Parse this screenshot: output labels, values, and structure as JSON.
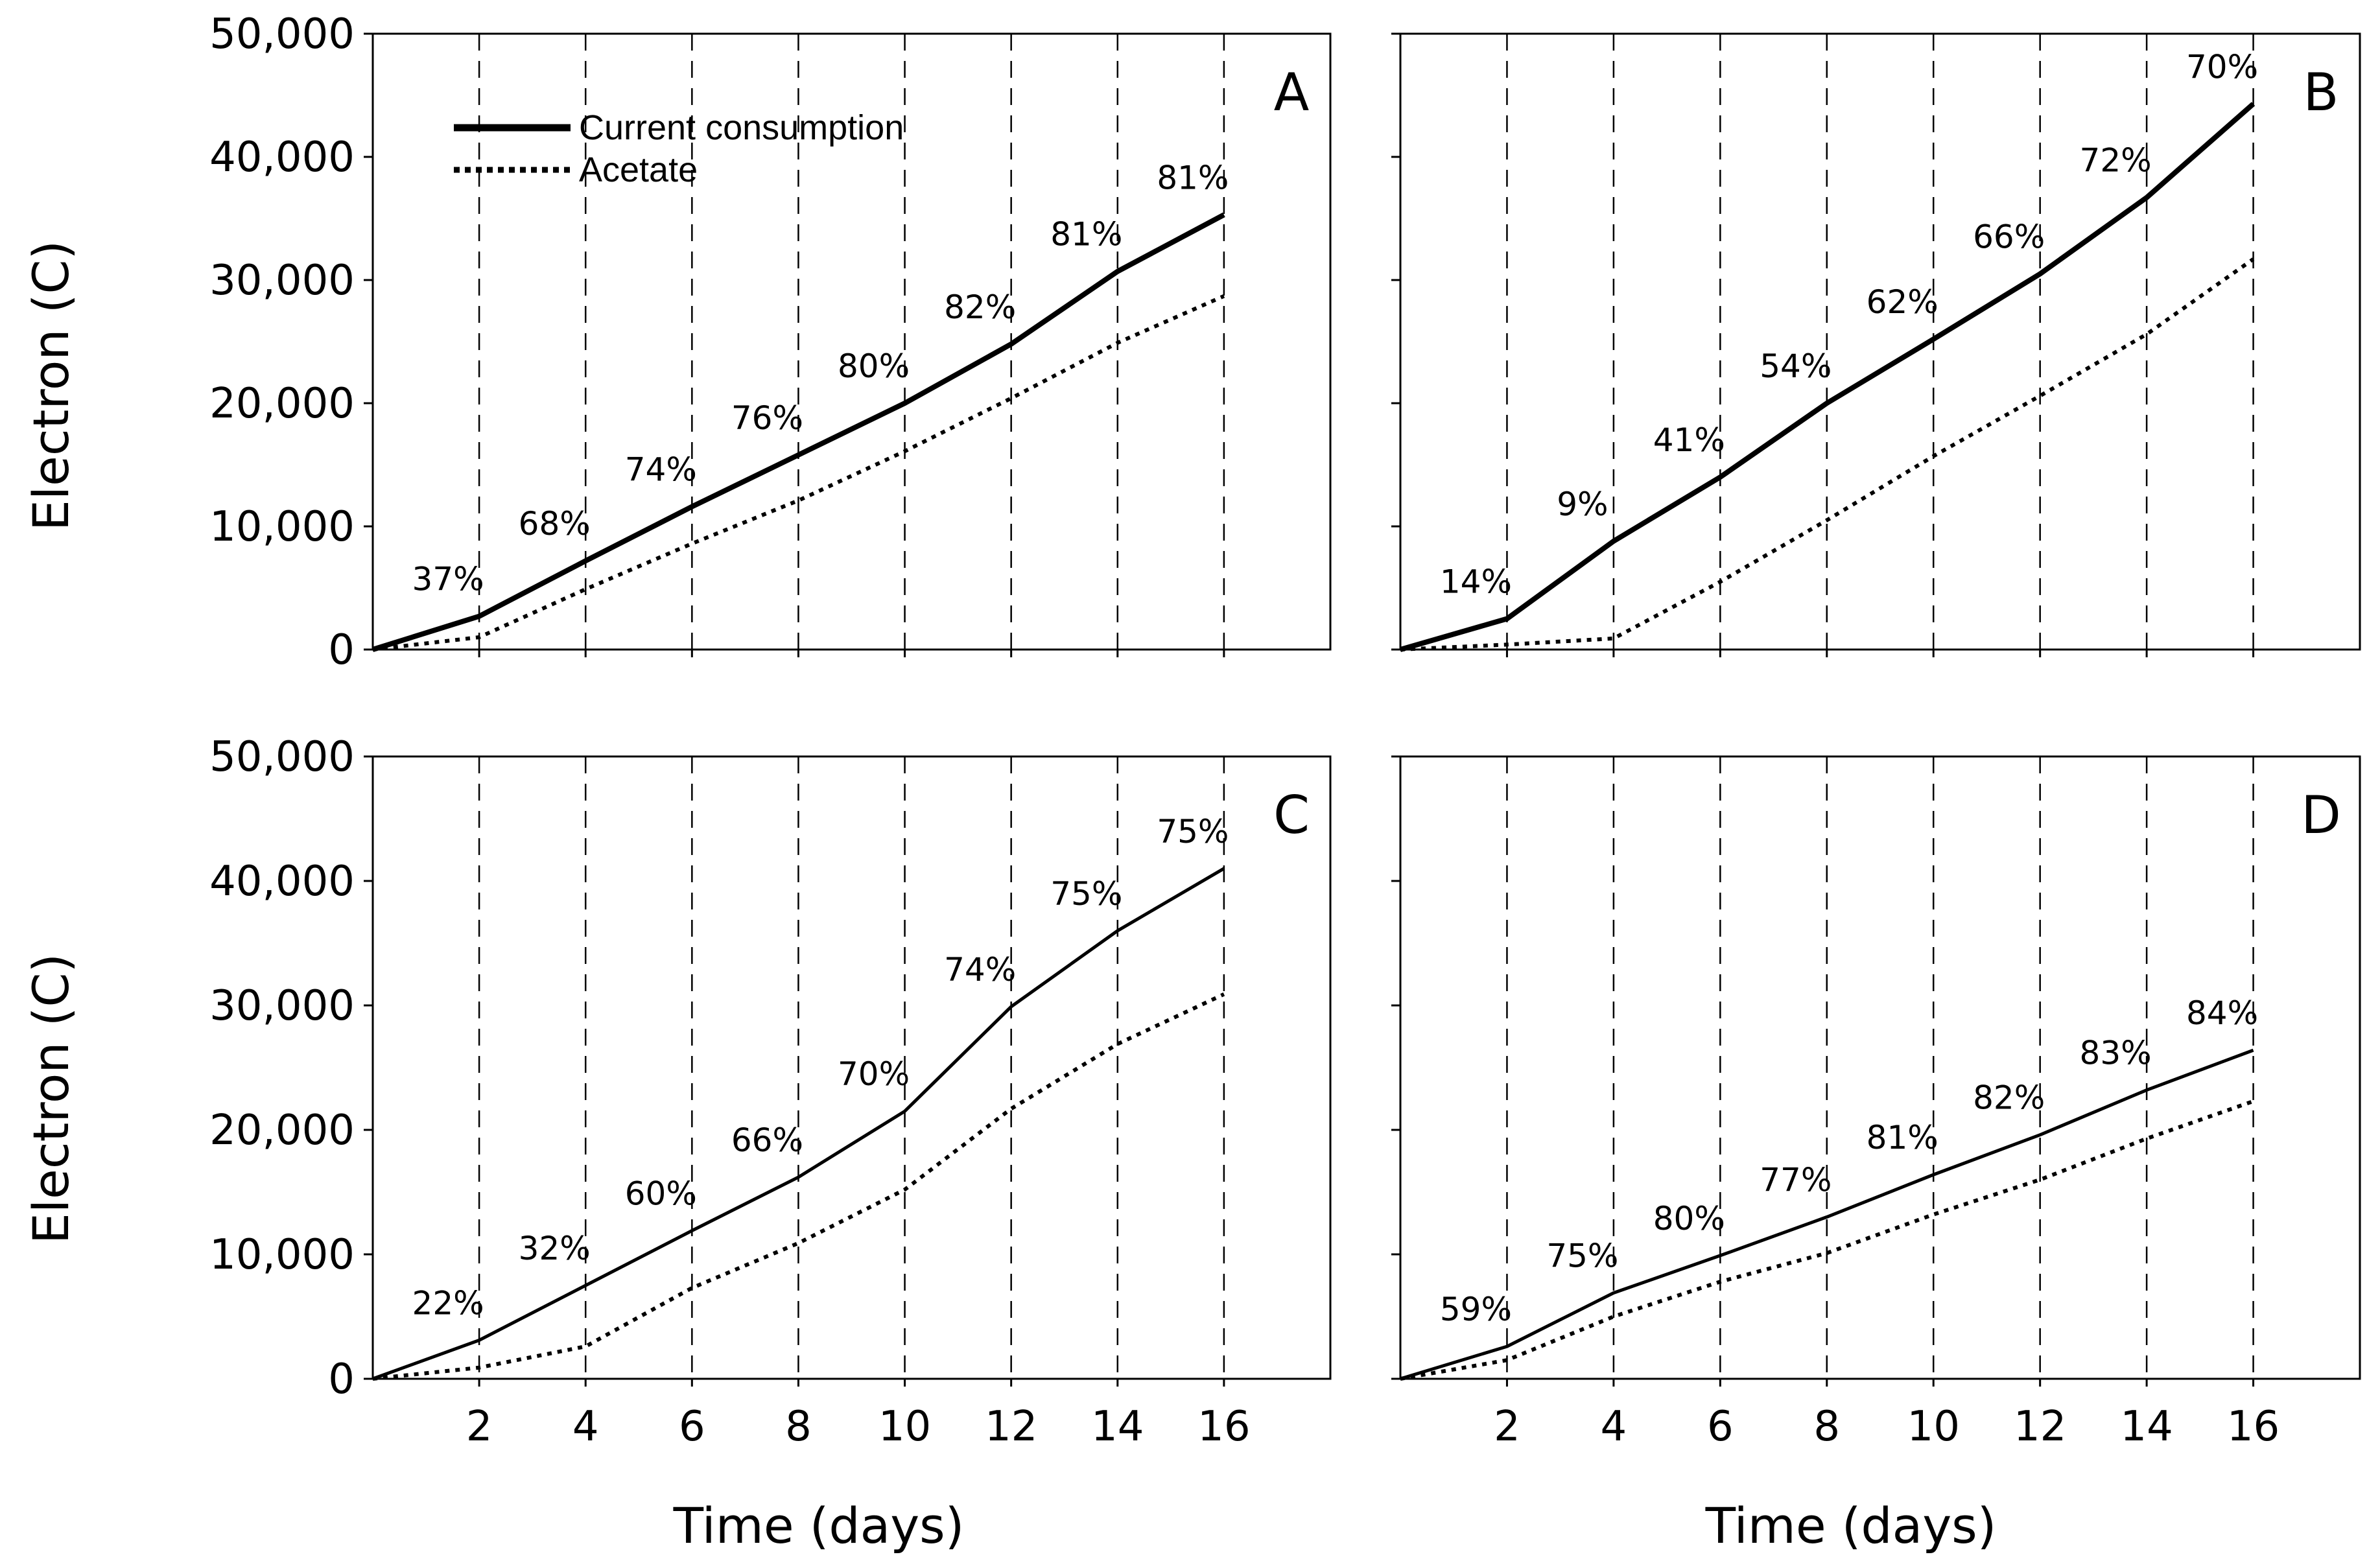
{
  "figure": {
    "y_axis_title": "Electron (C)",
    "x_axis_title": "Time (days)",
    "legend": [
      {
        "name": "Current consumption",
        "style": "solid"
      },
      {
        "name": "Acetate",
        "style": "dotted"
      }
    ]
  },
  "chart_data": [
    {
      "panel": "A",
      "type": "line",
      "xlabel": "Time (days)",
      "ylabel": "Electron (C)",
      "xlim": [
        0,
        18
      ],
      "ylim": [
        0,
        50000
      ],
      "x_ticks": [
        2,
        4,
        6,
        8,
        10,
        12,
        14,
        16
      ],
      "y_ticks": [
        0,
        10000,
        20000,
        30000,
        40000,
        50000
      ],
      "y_tick_labels": [
        "0",
        "10,000",
        "20,000",
        "30,000",
        "40,000",
        "50,000"
      ],
      "vertical_dashed_gridlines_at": [
        2,
        4,
        6,
        8,
        10,
        12,
        14,
        16
      ],
      "x": [
        0,
        2,
        4,
        6,
        8,
        10,
        12,
        14,
        16
      ],
      "series": [
        {
          "name": "Current consumption",
          "style": "solid",
          "values": [
            0,
            2700,
            7200,
            11600,
            15800,
            20000,
            24800,
            30700,
            35300
          ]
        },
        {
          "name": "Acetate",
          "style": "dotted",
          "values": [
            0,
            1000,
            4900,
            8600,
            12100,
            16100,
            20400,
            24900,
            28700
          ]
        }
      ],
      "annotations": [
        {
          "x": 2,
          "text": "37%"
        },
        {
          "x": 4,
          "text": "68%"
        },
        {
          "x": 6,
          "text": "74%"
        },
        {
          "x": 8,
          "text": "76%"
        },
        {
          "x": 10,
          "text": "80%"
        },
        {
          "x": 12,
          "text": "82%"
        },
        {
          "x": 14,
          "text": "81%"
        },
        {
          "x": 16,
          "text": "81%"
        }
      ],
      "legend_shown": true
    },
    {
      "panel": "B",
      "type": "line",
      "xlabel": "Time (days)",
      "ylabel": "Electron (C)",
      "xlim": [
        0,
        18
      ],
      "ylim": [
        0,
        50000
      ],
      "x_ticks": [
        2,
        4,
        6,
        8,
        10,
        12,
        14,
        16
      ],
      "y_ticks": [
        0,
        10000,
        20000,
        30000,
        40000,
        50000
      ],
      "y_tick_labels": [],
      "vertical_dashed_gridlines_at": [
        2,
        4,
        6,
        8,
        10,
        12,
        14,
        16
      ],
      "x": [
        0,
        2,
        4,
        6,
        8,
        10,
        12,
        14,
        16
      ],
      "series": [
        {
          "name": "Current consumption",
          "style": "solid",
          "values": [
            0,
            2500,
            8800,
            14000,
            20000,
            25200,
            30500,
            36700,
            44300
          ]
        },
        {
          "name": "Acetate",
          "style": "dotted",
          "values": [
            0,
            400,
            900,
            5500,
            10500,
            15700,
            20600,
            25600,
            31700
          ]
        }
      ],
      "annotations": [
        {
          "x": 2,
          "text": "14%"
        },
        {
          "x": 4,
          "text": "9%"
        },
        {
          "x": 6,
          "text": "41%"
        },
        {
          "x": 8,
          "text": "54%"
        },
        {
          "x": 10,
          "text": "62%"
        },
        {
          "x": 12,
          "text": "66%"
        },
        {
          "x": 14,
          "text": "72%"
        },
        {
          "x": 16,
          "text": "70%"
        }
      ],
      "legend_shown": false
    },
    {
      "panel": "C",
      "type": "line",
      "xlabel": "Time (days)",
      "ylabel": "Electron (C)",
      "xlim": [
        0,
        18
      ],
      "ylim": [
        0,
        50000
      ],
      "x_ticks": [
        2,
        4,
        6,
        8,
        10,
        12,
        14,
        16
      ],
      "x_tick_labels": [
        "2",
        "4",
        "6",
        "8",
        "10",
        "12",
        "14",
        "16"
      ],
      "y_ticks": [
        0,
        10000,
        20000,
        30000,
        40000,
        50000
      ],
      "y_tick_labels": [
        "0",
        "10,000",
        "20,000",
        "30,000",
        "40,000",
        "50,000"
      ],
      "vertical_dashed_gridlines_at": [
        2,
        4,
        6,
        8,
        10,
        12,
        14,
        16
      ],
      "x": [
        0,
        2,
        4,
        6,
        8,
        10,
        12,
        14,
        16
      ],
      "series": [
        {
          "name": "Current consumption",
          "style": "solid",
          "values": [
            0,
            3100,
            7500,
            11900,
            16200,
            21500,
            29900,
            36000,
            41000
          ]
        },
        {
          "name": "Acetate",
          "style": "dotted",
          "values": [
            0,
            900,
            2600,
            7300,
            10900,
            15200,
            21700,
            26900,
            30900
          ]
        }
      ],
      "annotations": [
        {
          "x": 2,
          "text": "22%"
        },
        {
          "x": 4,
          "text": "32%"
        },
        {
          "x": 6,
          "text": "60%"
        },
        {
          "x": 8,
          "text": "66%"
        },
        {
          "x": 10,
          "text": "70%"
        },
        {
          "x": 12,
          "text": "74%"
        },
        {
          "x": 14,
          "text": "75%"
        },
        {
          "x": 16,
          "text": "75%"
        }
      ],
      "legend_shown": false
    },
    {
      "panel": "D",
      "type": "line",
      "xlabel": "Time (days)",
      "ylabel": "Electron (C)",
      "xlim": [
        0,
        18
      ],
      "ylim": [
        0,
        50000
      ],
      "x_ticks": [
        2,
        4,
        6,
        8,
        10,
        12,
        14,
        16
      ],
      "x_tick_labels": [
        "2",
        "4",
        "6",
        "8",
        "10",
        "12",
        "14",
        "16"
      ],
      "y_ticks": [
        0,
        10000,
        20000,
        30000,
        40000,
        50000
      ],
      "y_tick_labels": [],
      "vertical_dashed_gridlines_at": [
        2,
        4,
        6,
        8,
        10,
        12,
        14,
        16
      ],
      "x": [
        0,
        2,
        4,
        6,
        8,
        10,
        12,
        14,
        16
      ],
      "series": [
        {
          "name": "Current consumption",
          "style": "solid",
          "values": [
            0,
            2600,
            6900,
            9900,
            13000,
            16400,
            19600,
            23200,
            26400
          ]
        },
        {
          "name": "Acetate",
          "style": "dotted",
          "values": [
            0,
            1500,
            5000,
            7800,
            10100,
            13200,
            16000,
            19300,
            22300
          ]
        }
      ],
      "annotations": [
        {
          "x": 2,
          "text": "59%"
        },
        {
          "x": 4,
          "text": "75%"
        },
        {
          "x": 6,
          "text": "80%"
        },
        {
          "x": 8,
          "text": "77%"
        },
        {
          "x": 10,
          "text": "81%"
        },
        {
          "x": 12,
          "text": "82%"
        },
        {
          "x": 14,
          "text": "83%"
        },
        {
          "x": 16,
          "text": "84%"
        }
      ],
      "legend_shown": false
    }
  ]
}
